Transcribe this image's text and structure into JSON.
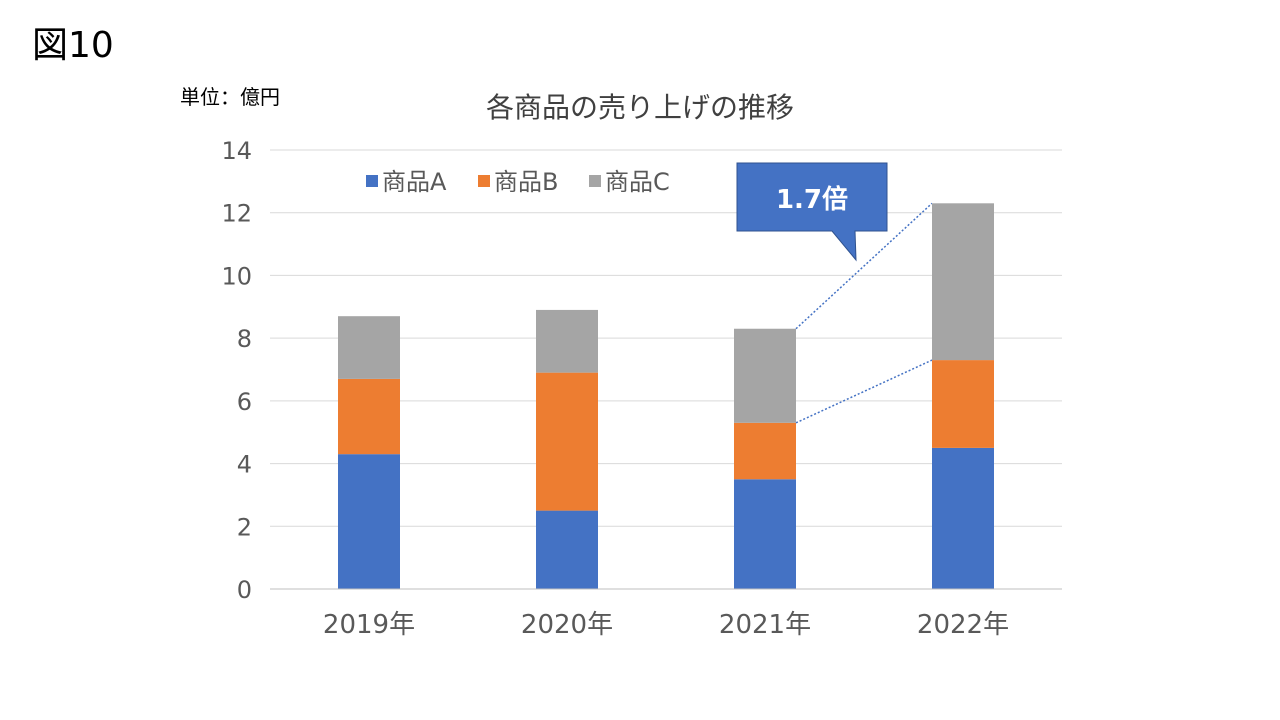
{
  "figure_label": "図10",
  "unit_label": "単位：億円",
  "colors": {
    "series_a": "#4472C4",
    "series_b": "#ED7D31",
    "series_c": "#A5A5A5",
    "gridline": "#D9D9D9",
    "axis_line": "#BFBFBF",
    "callout_fill": "#4472C4",
    "callout_border": "#2F528F",
    "callout_text": "#FFFFFF",
    "connector": "#4472C4"
  },
  "callout": {
    "text": "1.7倍"
  },
  "chart_data": {
    "type": "bar",
    "stacked": true,
    "title": "各商品の売り上げの推移",
    "categories": [
      "2019年",
      "2020年",
      "2021年",
      "2022年"
    ],
    "series": [
      {
        "name": "商品A",
        "values": [
          4.3,
          2.5,
          3.5,
          4.5
        ]
      },
      {
        "name": "商品B",
        "values": [
          2.4,
          4.4,
          1.8,
          2.8
        ]
      },
      {
        "name": "商品C",
        "values": [
          2.0,
          2.0,
          3.0,
          5.0
        ]
      }
    ],
    "ylim": [
      0,
      14
    ],
    "yticks": [
      0,
      2,
      4,
      6,
      8,
      10,
      12,
      14
    ],
    "grid": true,
    "legend": "top-left"
  }
}
